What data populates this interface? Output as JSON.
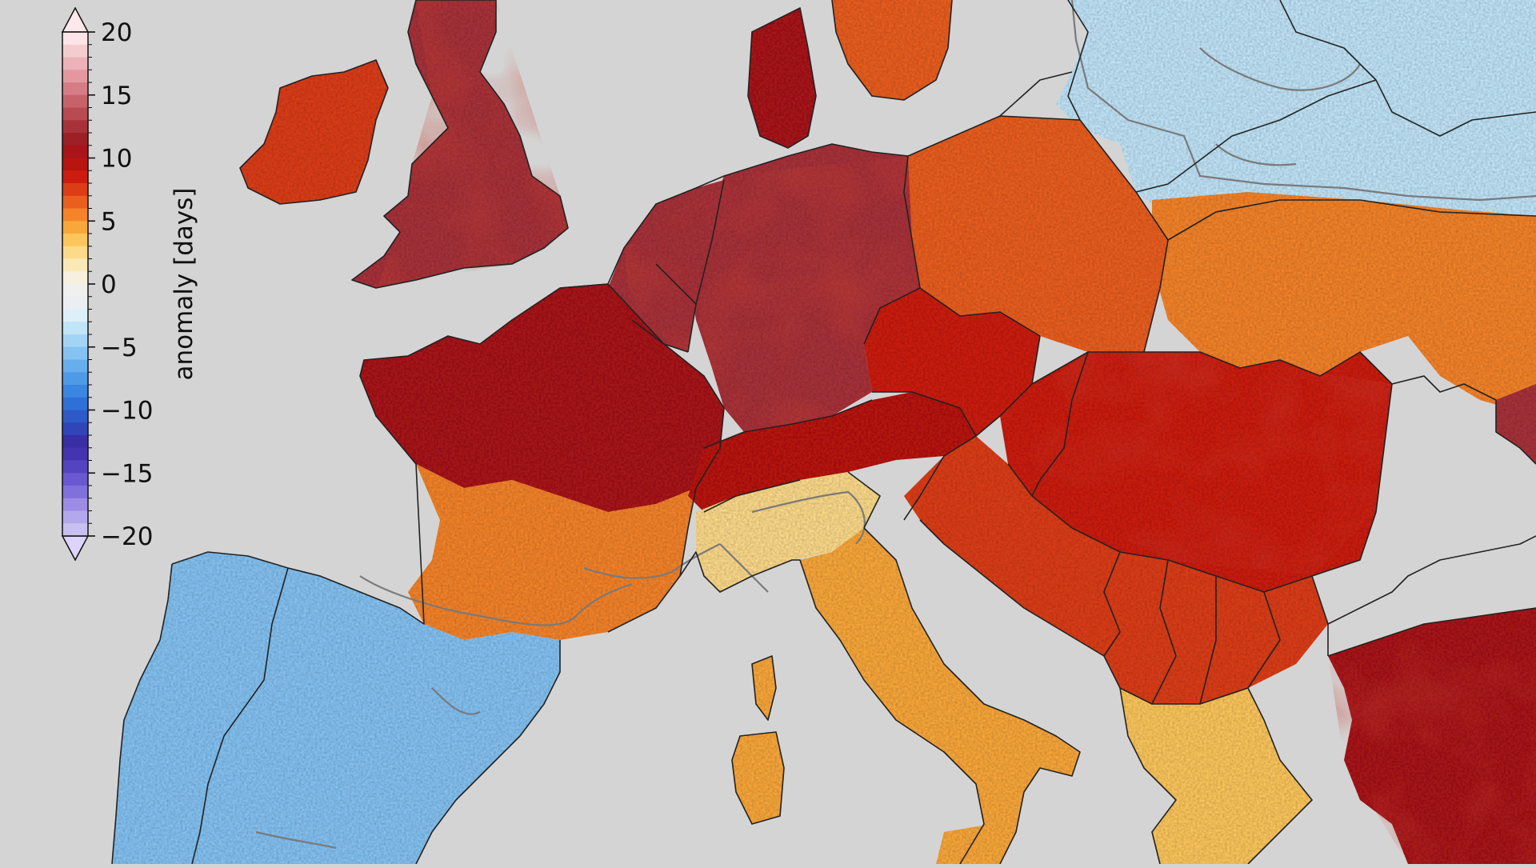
{
  "map": {
    "background_color": "#d4d4d4",
    "border_color": "#222222",
    "contour_color": "#7a7a7a"
  },
  "colorbar": {
    "label": "anomaly [days]",
    "min": -20,
    "max": 20,
    "ticks": [
      {
        "value": 20,
        "label": "20"
      },
      {
        "value": 15,
        "label": "15"
      },
      {
        "value": 10,
        "label": "10"
      },
      {
        "value": 5,
        "label": "5"
      },
      {
        "value": 0,
        "label": "0"
      },
      {
        "value": -5,
        "label": "−5"
      },
      {
        "value": -10,
        "label": "−10"
      },
      {
        "value": -15,
        "label": "−15"
      },
      {
        "value": -20,
        "label": "−20"
      }
    ],
    "colors": [
      "#c8c0f0",
      "#b4a8ec",
      "#9c8ce4",
      "#8070dc",
      "#6a58d0",
      "#5444c0",
      "#4434b0",
      "#3a2ea6",
      "#2f45b8",
      "#2e5ac8",
      "#2f70d6",
      "#3a86e0",
      "#4e9ae6",
      "#66aeec",
      "#84c2f2",
      "#a2d4f6",
      "#c0e4f8",
      "#dcf0fa",
      "#ebeff2",
      "#f0f0ee",
      "#f6f0dc",
      "#fae8b8",
      "#fcda8a",
      "#fcc65c",
      "#f9a73a",
      "#f4832a",
      "#ea5e20",
      "#dc3d16",
      "#cc1c10",
      "#b81410",
      "#a8141a",
      "#9c2026",
      "#a8323a",
      "#b84a52",
      "#c8626a",
      "#d67c84",
      "#e2989e",
      "#ecb2b8",
      "#f4ccd0",
      "#fce4e8"
    ],
    "extend_low_color": "#dcd4fa",
    "extend_high_color": "#ffe8ec"
  },
  "regions": [
    {
      "name": "iberia",
      "anomaly": -6
    },
    {
      "name": "uk",
      "anomaly": 12
    },
    {
      "name": "ireland",
      "anomaly": 7
    },
    {
      "name": "france-north",
      "anomaly": 10
    },
    {
      "name": "france-south",
      "anomaly": 5
    },
    {
      "name": "benelux",
      "anomaly": 12
    },
    {
      "name": "germany",
      "anomaly": 12
    },
    {
      "name": "denmark",
      "anomaly": 10
    },
    {
      "name": "scandinavia-south",
      "anomaly": 6
    },
    {
      "name": "poland",
      "anomaly": 6
    },
    {
      "name": "baltics-russia",
      "anomaly": -4
    },
    {
      "name": "czech-austria",
      "anomaly": 8
    },
    {
      "name": "alps",
      "anomaly": 9
    },
    {
      "name": "switzerland-north-italy",
      "anomaly": 2
    },
    {
      "name": "italy",
      "anomaly": 4
    },
    {
      "name": "balkans",
      "anomaly": 7
    },
    {
      "name": "hungary-romania",
      "anomaly": 8
    },
    {
      "name": "ukraine",
      "anomaly": 5
    },
    {
      "name": "greece",
      "anomaly": 3
    },
    {
      "name": "turkey",
      "anomaly": 10
    },
    {
      "name": "crimea",
      "anomaly": 12
    },
    {
      "name": "corsica-sardinia",
      "anomaly": 4
    }
  ]
}
